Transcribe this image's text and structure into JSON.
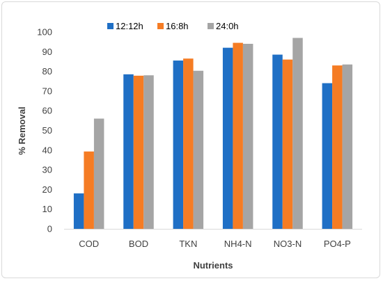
{
  "chart_data": {
    "type": "bar",
    "title": "",
    "xlabel": "Nutrients",
    "ylabel": "% Removal",
    "categories": [
      "COD",
      "BOD",
      "TKN",
      "NH4-N",
      "NO3-N",
      "PO4-P"
    ],
    "series": [
      {
        "name": "12:12h",
        "color": "#1f6fc5",
        "values": [
          18,
          78.5,
          85.5,
          92,
          88.5,
          74
        ]
      },
      {
        "name": "16:8h",
        "color": "#f57c24",
        "values": [
          39.3,
          77.8,
          86.5,
          94.5,
          86,
          83
        ]
      },
      {
        "name": "24:0h",
        "color": "#a5a5a5",
        "values": [
          56,
          78,
          80.3,
          94,
          97,
          83.5
        ]
      }
    ],
    "ylim": [
      0,
      100
    ],
    "yticks": [
      0,
      10,
      20,
      30,
      40,
      50,
      60,
      70,
      80,
      90,
      100
    ],
    "grid": false,
    "legend_position": "top"
  }
}
